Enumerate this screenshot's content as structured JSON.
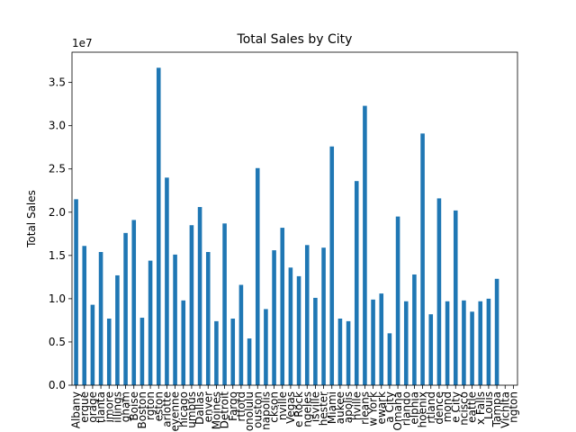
{
  "chart_data": {
    "type": "bar",
    "title": "Total Sales by City",
    "xlabel": "",
    "ylabel": "Total Sales",
    "scale_label": "1e7",
    "scale_factor": 10000000,
    "ylim": [
      0,
      38500000
    ],
    "yticks": [
      0,
      5000000,
      10000000,
      15000000,
      20000000,
      25000000,
      30000000,
      35000000
    ],
    "ytick_labels": [
      "0.0",
      "0.5",
      "1.0",
      "1.5",
      "2.0",
      "2.5",
      "3.0",
      "3.5"
    ],
    "grid": false,
    "bar_color": "#1f77b4",
    "categories": [
      "Albany",
      "Albuquerque",
      "Anchorage",
      "Atlanta",
      "Baltimore",
      "Billings",
      "Birmingham",
      "Boise",
      "Boston",
      "Burlington",
      "Charleston",
      "Charlotte",
      "Cheyenne",
      "Chicago",
      "Columbus",
      "Dallas",
      "Denver",
      "Des Moines",
      "Detroit",
      "Fargo",
      "Hartford",
      "Honolulu",
      "Houston",
      "Indianapolis",
      "Jackson",
      "Jacksonville",
      "Las Vegas",
      "Little Rock",
      "Los Angeles",
      "Louisville",
      "Manchester",
      "Miami",
      "Milwaukee",
      "Minneapolis",
      "Nashville",
      "New Orleans",
      "New York",
      "Newark",
      "Oklahoma City",
      "Omaha",
      "Orlando",
      "Philadelphia",
      "Phoenix",
      "Portland",
      "Providence",
      "Richmond",
      "Salt Lake City",
      "San Francisco",
      "Seattle",
      "Sioux Falls",
      "St. Louis",
      "Tampa",
      "Wichita",
      "Wilmington"
    ],
    "tick_labels": [
      "Albany",
      "erque",
      "orage",
      "tlanta",
      "imore",
      "illings",
      "gham",
      "Boise",
      "Boston",
      "rgton",
      "eston",
      "arlotte",
      "eyenne",
      "hicago",
      "umbus",
      "Dallas",
      "enver",
      "Moines",
      "Detroit",
      "Fargo",
      "rtford",
      "onolulu",
      "ouston",
      "napolis",
      "ckson",
      "nville",
      "Vegas",
      "e Rock",
      "ngeles",
      "isville",
      "hester",
      "Miami",
      "aukee",
      "apolis",
      "hville",
      "rleans",
      "w York",
      "ewark",
      "a City",
      "Omaha",
      "rlando",
      "elphia",
      "hoenix",
      "rtland",
      "dence",
      "mond",
      "e City",
      "ncisco",
      "eattle",
      "x Falls",
      "Louis",
      "Tampa",
      "Vichita",
      "ngton"
    ],
    "values": [
      21500000,
      16100000,
      9300000,
      15400000,
      7700000,
      12700000,
      17600000,
      19100000,
      7800000,
      14400000,
      36700000,
      24000000,
      15100000,
      9800000,
      18500000,
      20600000,
      15400000,
      7400000,
      18700000,
      7700000,
      11600000,
      5400000,
      25100000,
      8800000,
      15600000,
      18200000,
      13600000,
      12600000,
      16200000,
      10100000,
      15900000,
      27600000,
      7700000,
      7400000,
      23600000,
      32300000,
      9900000,
      10600000,
      6000000,
      19500000,
      9700000,
      12800000,
      29100000,
      8200000,
      21600000,
      9700000,
      20200000,
      9800000,
      8500000,
      9700000,
      10000000,
      12300000,
      0,
      0
    ]
  }
}
